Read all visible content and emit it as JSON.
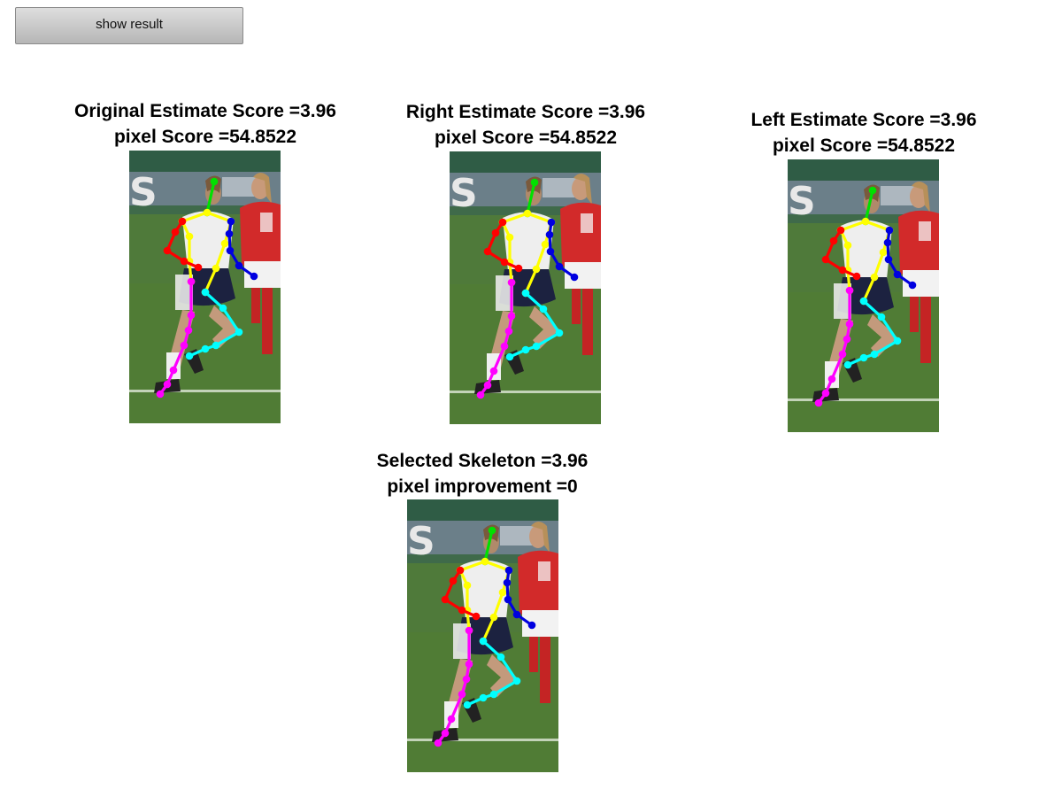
{
  "controls": {
    "show_result_label": "show result"
  },
  "panels": [
    {
      "title_line1": "Original Estimate Score =3.96",
      "title_line2": "pixel Score =54.8522"
    },
    {
      "title_line1": "Right Estimate Score =3.96",
      "title_line2": "pixel Score =54.8522"
    },
    {
      "title_line1": "Left Estimate Score =3.96",
      "title_line2": "pixel Score =54.8522"
    },
    {
      "title_line1": "Selected Skeleton =3.96",
      "title_line2": "pixel improvement =0"
    }
  ],
  "skeleton_colors": {
    "head": "#00e000",
    "torso": "#ffff00",
    "right_arm": "#ff0000",
    "left_arm": "#0000e0",
    "right_leg": "#ff00ff",
    "left_leg": "#00ffff"
  }
}
